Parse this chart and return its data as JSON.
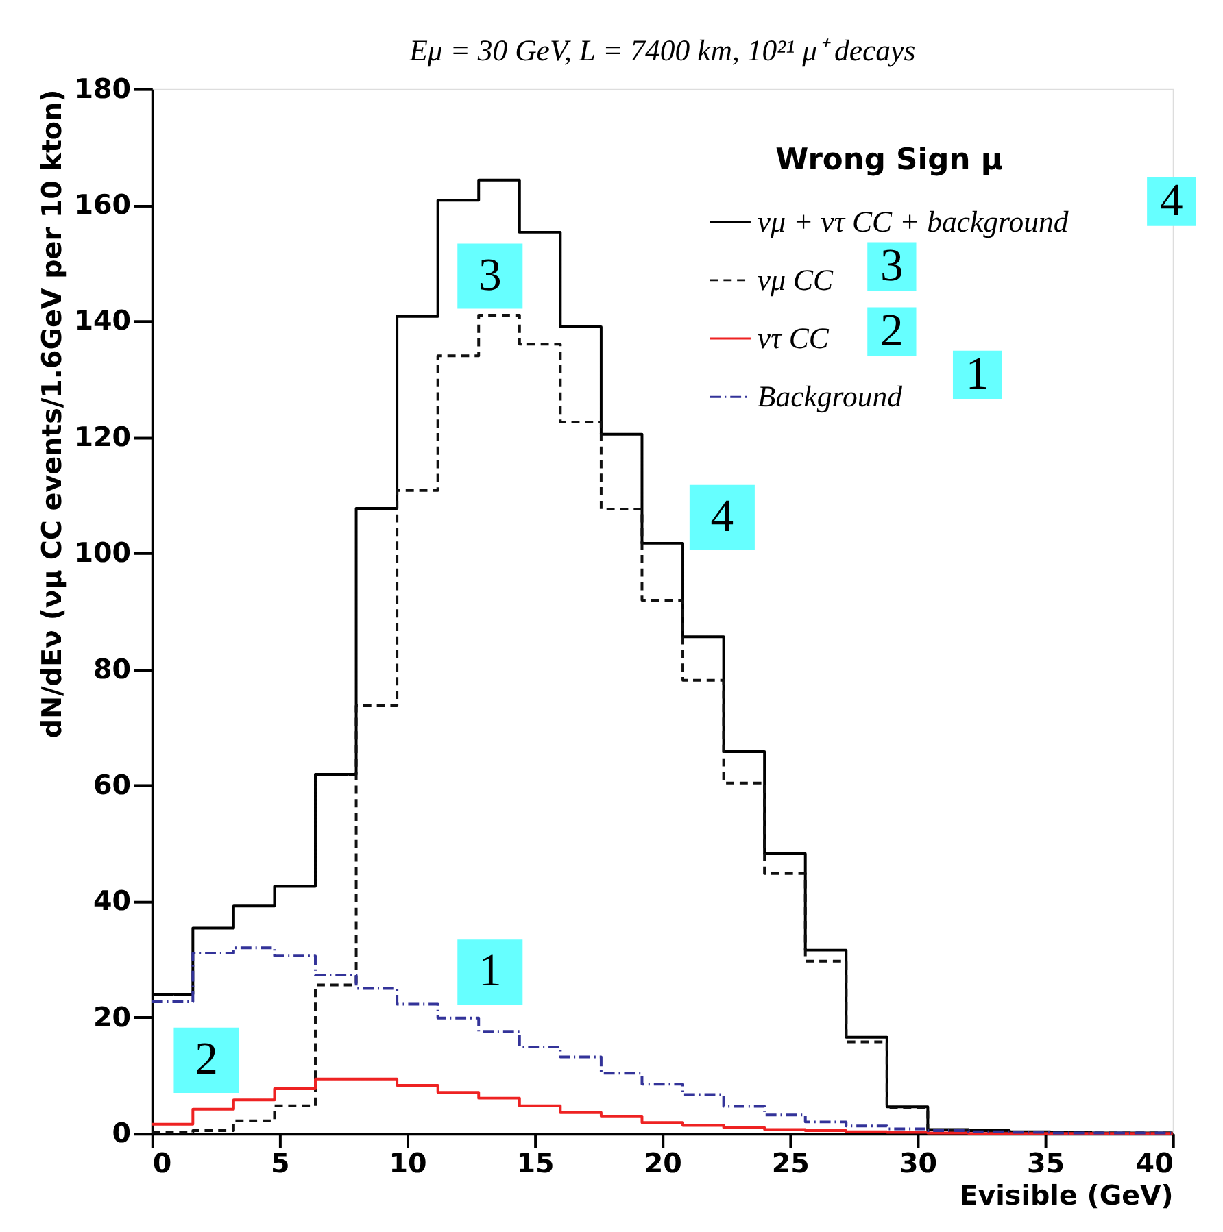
{
  "chart_data": {
    "type": "histogram",
    "title": "Eμ = 30 GeV, L = 7400 km, 10²¹ μ⁺ decays",
    "xlabel": "Evisible (GeV)",
    "ylabel": "dN/dEν (νμ CC events/1.6GeV per 10 kton)",
    "legend_title": "Wrong Sign μ",
    "legend": "top right",
    "bins": [
      0,
      1.6,
      3.2,
      4.8,
      6.4,
      8.0,
      9.6,
      11.2,
      12.8,
      14.4,
      16.0,
      17.6,
      19.2,
      20.8,
      22.4,
      24.0,
      25.6,
      27.2,
      28.8,
      30.4,
      32.0,
      33.6,
      35.2,
      36.8,
      38.4,
      40.0
    ],
    "series": [
      {
        "name": "νμ + ντ CC + background",
        "color": "#000000",
        "line_style": "solid",
        "values": [
          24,
          35.4,
          39.2,
          42.6,
          61.9,
          107.7,
          140.8,
          160.8,
          164.3,
          155.3,
          139,
          120.5,
          101.7,
          85.6,
          65.8,
          48.2,
          31.6,
          16.6,
          4.6,
          0.7,
          0.5,
          0.3,
          0.2,
          0.1,
          0.1
        ]
      },
      {
        "name": "νμ CC",
        "color": "#111111",
        "line_style": "dashed",
        "values": [
          0.2,
          0.5,
          2.2,
          4.8,
          25.6,
          73.7,
          110.8,
          134,
          141,
          136,
          122.6,
          107.6,
          91.9,
          78.1,
          60.4,
          44.8,
          29.7,
          15.8,
          4.4,
          0.5,
          0.2,
          0.2,
          0.1,
          0.1,
          0.1
        ]
      },
      {
        "name": "ντ CC",
        "color": "#ee2222",
        "line_style": "solid",
        "values": [
          1.6,
          4.2,
          5.8,
          7.7,
          9.4,
          9.4,
          8.3,
          7.1,
          6.1,
          4.8,
          3.6,
          3.0,
          1.9,
          1.4,
          1.0,
          0.7,
          0.5,
          0.3,
          0.2,
          0.1,
          0,
          0,
          0,
          0,
          0
        ]
      },
      {
        "name": "Background",
        "color": "#333399",
        "line_style": "dashdot",
        "values": [
          22.7,
          31.1,
          32,
          30.6,
          27.3,
          25,
          22.3,
          19.9,
          17.6,
          14.9,
          13.2,
          10.4,
          8.5,
          6.7,
          4.7,
          3.2,
          2.0,
          1.3,
          0.8,
          0.5,
          0.3,
          0.2,
          0.1,
          0.1,
          0.1
        ]
      }
    ],
    "annotations": [
      "4",
      "3",
      "2",
      "1",
      "3",
      "4",
      "1",
      "2"
    ],
    "xlim": [
      0,
      40
    ],
    "ylim": [
      0,
      180
    ],
    "xticks": [
      0,
      5,
      10,
      15,
      20,
      25,
      30,
      35,
      40
    ],
    "yticks": [
      0,
      20,
      40,
      60,
      80,
      100,
      120,
      140,
      160,
      180
    ],
    "grid": false
  }
}
